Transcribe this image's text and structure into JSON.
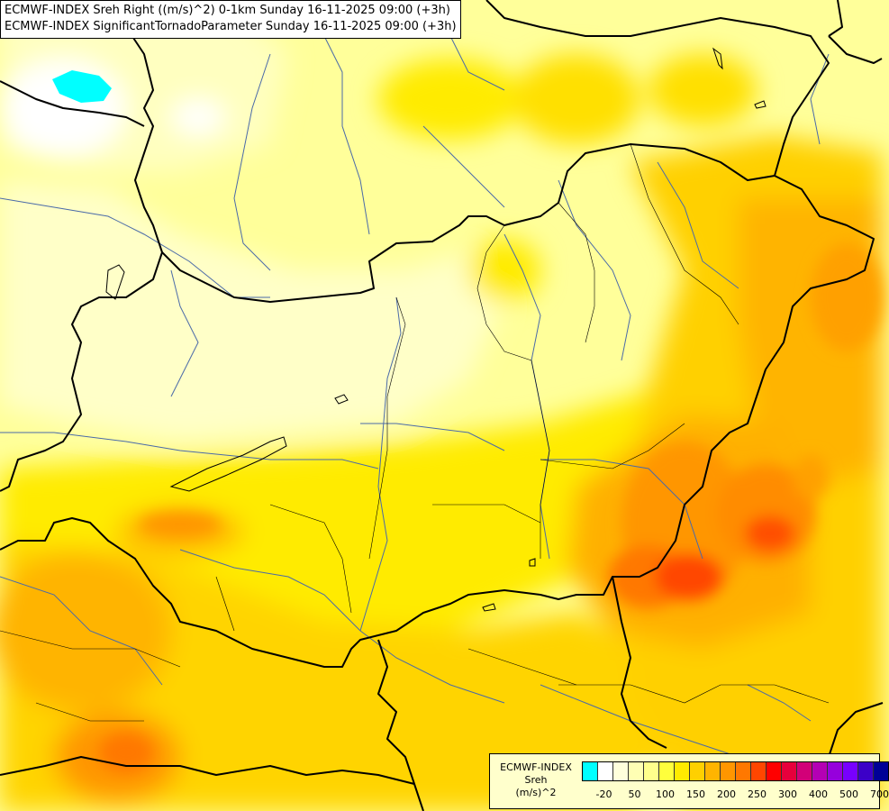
{
  "title": {
    "line1": "ECMWF-INDEX Sreh Right ((m/s)^2) 0-1km Sunday 16-11-2025 09:00 (+3h)",
    "line2": "ECMWF-INDEX SignificantTornadoParameter Sunday 16-11-2025 09:00 (+3h)"
  },
  "legend": {
    "line1": "ECMWF-INDEX",
    "line2": "Sreh",
    "line3": "(m/s)^2",
    "colors": [
      "#00ffff",
      "#ffffff",
      "#ffffdc",
      "#ffffb4",
      "#ffff8c",
      "#ffff3c",
      "#ffeb00",
      "#ffd000",
      "#ffb400",
      "#ff9600",
      "#ff7800",
      "#ff4600",
      "#ff0000",
      "#e6003c",
      "#d20078",
      "#b400b4",
      "#9600dc",
      "#7800ff",
      "#3c00c8",
      "#000096"
    ],
    "labels": [
      "-20",
      "50",
      "100",
      "150",
      "200",
      "250",
      "300",
      "400",
      "500",
      "700"
    ]
  }
}
